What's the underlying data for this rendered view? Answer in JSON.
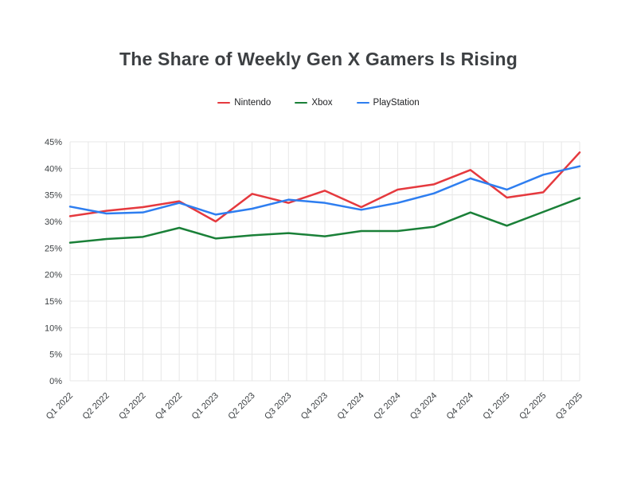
{
  "page": {
    "title": "The Share of Weekly Gen X Gamers Is Rising"
  },
  "chart_data": {
    "type": "line",
    "title": "The Share of Weekly Gen X Gamers Is Rising",
    "xlabel": "",
    "ylabel": "",
    "categories": [
      "Q1 2022",
      "Q2 2022",
      "Q3 2022",
      "Q4 2022",
      "Q1 2023",
      "Q2 2023",
      "Q3 2023",
      "Q4 2023",
      "Q1 2024",
      "Q2 2024",
      "Q3 2024",
      "Q4 2024",
      "Q1 2025",
      "Q2 2025",
      "Q3 2025"
    ],
    "series": [
      {
        "name": "Nintendo",
        "color": "#e5393e",
        "values": [
          31.0,
          32.0,
          32.7,
          33.8,
          30.0,
          35.2,
          33.5,
          35.8,
          32.7,
          36.0,
          37.0,
          39.7,
          34.5,
          35.5,
          43.0
        ]
      },
      {
        "name": "Xbox",
        "color": "#1a8038",
        "values": [
          26.0,
          26.7,
          27.1,
          28.8,
          26.8,
          27.4,
          27.8,
          27.2,
          28.2,
          28.2,
          29.0,
          31.7,
          29.2,
          31.8,
          34.4
        ]
      },
      {
        "name": "PlayStation",
        "color": "#2e7ef0",
        "values": [
          32.8,
          31.5,
          31.7,
          33.5,
          31.3,
          32.4,
          34.1,
          33.5,
          32.2,
          33.5,
          35.3,
          38.1,
          36.0,
          38.8,
          40.4
        ]
      }
    ],
    "ylim": [
      0,
      45
    ],
    "ytick_step": 5,
    "ytick_suffix": "%",
    "grid": true,
    "minor_x_gridlines": true,
    "legend_position": "top",
    "x_label_rotation_deg": -45
  },
  "colors": {
    "grid": "#e7e7e7",
    "axis_text": "#3c4043",
    "title_text": "#3d4043",
    "background": "#ffffff"
  }
}
